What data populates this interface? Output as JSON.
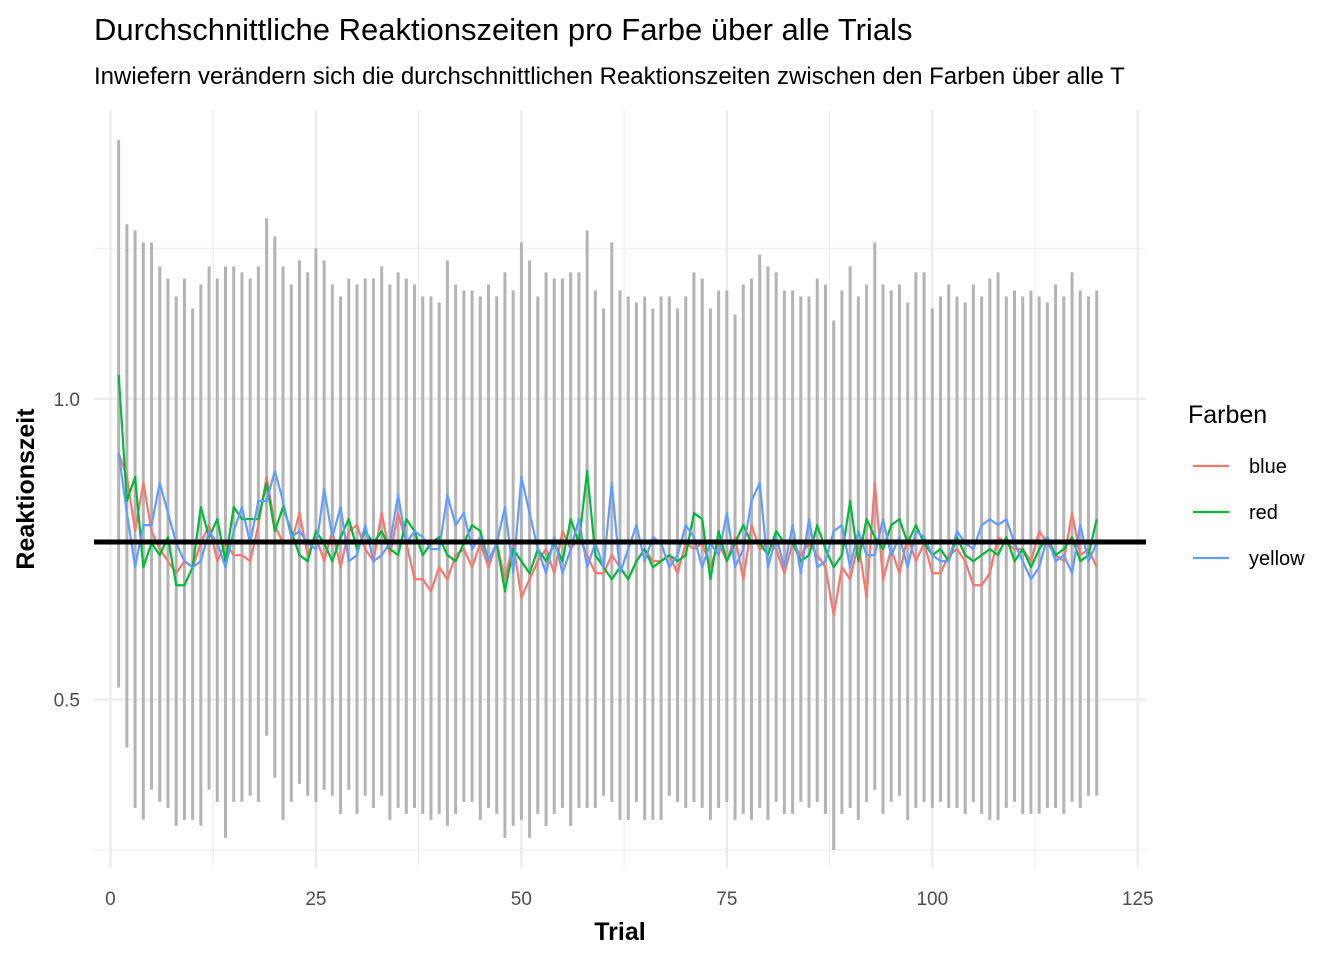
{
  "chart_data": {
    "type": "line",
    "title": "Durchschnittliche Reaktionszeiten pro Farbe über alle Trials",
    "subtitle": "Inwiefern verändern sich die durchschnittlichen Reaktionszeiten zwischen den Farben über alle T",
    "xlabel": "Trial",
    "ylabel": "Reaktionszeit",
    "xlim": [
      -2,
      126
    ],
    "ylim": [
      0.22,
      1.48
    ],
    "x_ticks": [
      0,
      25,
      50,
      75,
      100,
      125
    ],
    "x_tick_labels": [
      "0",
      "25",
      "50",
      "75",
      "100",
      "125"
    ],
    "y_ticks": [
      0.5,
      1.0
    ],
    "y_tick_labels": [
      "0.5",
      "1.0"
    ],
    "grid": true,
    "mean_line": {
      "value": 0.762,
      "color": "#000000"
    },
    "legend": {
      "title": "Farben",
      "position": "right"
    },
    "range_color": "#b3b3b3",
    "ranges": [
      {
        "x": 1,
        "low": 0.52,
        "high": 1.43
      },
      {
        "x": 2,
        "low": 0.42,
        "high": 1.29
      },
      {
        "x": 3,
        "low": 0.32,
        "high": 1.28
      },
      {
        "x": 4,
        "low": 0.3,
        "high": 1.26
      },
      {
        "x": 5,
        "low": 0.35,
        "high": 1.26
      },
      {
        "x": 6,
        "low": 0.33,
        "high": 1.22
      },
      {
        "x": 7,
        "low": 0.32,
        "high": 1.2
      },
      {
        "x": 8,
        "low": 0.29,
        "high": 1.17
      },
      {
        "x": 9,
        "low": 0.3,
        "high": 1.2
      },
      {
        "x": 10,
        "low": 0.3,
        "high": 1.15
      },
      {
        "x": 11,
        "low": 0.29,
        "high": 1.19
      },
      {
        "x": 12,
        "low": 0.35,
        "high": 1.22
      },
      {
        "x": 13,
        "low": 0.33,
        "high": 1.2
      },
      {
        "x": 14,
        "low": 0.27,
        "high": 1.22
      },
      {
        "x": 15,
        "low": 0.33,
        "high": 1.22
      },
      {
        "x": 16,
        "low": 0.33,
        "high": 1.21
      },
      {
        "x": 17,
        "low": 0.34,
        "high": 1.2
      },
      {
        "x": 18,
        "low": 0.33,
        "high": 1.22
      },
      {
        "x": 19,
        "low": 0.44,
        "high": 1.3
      },
      {
        "x": 20,
        "low": 0.37,
        "high": 1.27
      },
      {
        "x": 21,
        "low": 0.3,
        "high": 1.22
      },
      {
        "x": 22,
        "low": 0.33,
        "high": 1.19
      },
      {
        "x": 23,
        "low": 0.36,
        "high": 1.23
      },
      {
        "x": 24,
        "low": 0.34,
        "high": 1.21
      },
      {
        "x": 25,
        "low": 0.33,
        "high": 1.25
      },
      {
        "x": 26,
        "low": 0.35,
        "high": 1.23
      },
      {
        "x": 27,
        "low": 0.34,
        "high": 1.19
      },
      {
        "x": 28,
        "low": 0.31,
        "high": 1.17
      },
      {
        "x": 29,
        "low": 0.35,
        "high": 1.2
      },
      {
        "x": 30,
        "low": 0.31,
        "high": 1.19
      },
      {
        "x": 31,
        "low": 0.34,
        "high": 1.2
      },
      {
        "x": 32,
        "low": 0.32,
        "high": 1.2
      },
      {
        "x": 33,
        "low": 0.34,
        "high": 1.22
      },
      {
        "x": 34,
        "low": 0.3,
        "high": 1.19
      },
      {
        "x": 35,
        "low": 0.32,
        "high": 1.21
      },
      {
        "x": 36,
        "low": 0.31,
        "high": 1.2
      },
      {
        "x": 37,
        "low": 0.32,
        "high": 1.19
      },
      {
        "x": 38,
        "low": 0.31,
        "high": 1.17
      },
      {
        "x": 39,
        "low": 0.3,
        "high": 1.17
      },
      {
        "x": 40,
        "low": 0.31,
        "high": 1.16
      },
      {
        "x": 41,
        "low": 0.29,
        "high": 1.23
      },
      {
        "x": 42,
        "low": 0.31,
        "high": 1.19
      },
      {
        "x": 43,
        "low": 0.33,
        "high": 1.18
      },
      {
        "x": 44,
        "low": 0.33,
        "high": 1.18
      },
      {
        "x": 45,
        "low": 0.3,
        "high": 1.17
      },
      {
        "x": 46,
        "low": 0.32,
        "high": 1.19
      },
      {
        "x": 47,
        "low": 0.31,
        "high": 1.17
      },
      {
        "x": 48,
        "low": 0.27,
        "high": 1.21
      },
      {
        "x": 49,
        "low": 0.29,
        "high": 1.18
      },
      {
        "x": 50,
        "low": 0.3,
        "high": 1.26
      },
      {
        "x": 51,
        "low": 0.27,
        "high": 1.23
      },
      {
        "x": 52,
        "low": 0.31,
        "high": 1.17
      },
      {
        "x": 53,
        "low": 0.29,
        "high": 1.21
      },
      {
        "x": 54,
        "low": 0.31,
        "high": 1.2
      },
      {
        "x": 55,
        "low": 0.32,
        "high": 1.2
      },
      {
        "x": 56,
        "low": 0.29,
        "high": 1.21
      },
      {
        "x": 57,
        "low": 0.32,
        "high": 1.21
      },
      {
        "x": 58,
        "low": 0.32,
        "high": 1.28
      },
      {
        "x": 59,
        "low": 0.32,
        "high": 1.18
      },
      {
        "x": 60,
        "low": 0.34,
        "high": 1.15
      },
      {
        "x": 61,
        "low": 0.33,
        "high": 1.26
      },
      {
        "x": 62,
        "low": 0.3,
        "high": 1.18
      },
      {
        "x": 63,
        "low": 0.3,
        "high": 1.17
      },
      {
        "x": 64,
        "low": 0.33,
        "high": 1.16
      },
      {
        "x": 65,
        "low": 0.3,
        "high": 1.17
      },
      {
        "x": 66,
        "low": 0.3,
        "high": 1.15
      },
      {
        "x": 67,
        "low": 0.3,
        "high": 1.17
      },
      {
        "x": 68,
        "low": 0.34,
        "high": 1.17
      },
      {
        "x": 69,
        "low": 0.33,
        "high": 1.15
      },
      {
        "x": 70,
        "low": 0.32,
        "high": 1.17
      },
      {
        "x": 71,
        "low": 0.33,
        "high": 1.21
      },
      {
        "x": 72,
        "low": 0.32,
        "high": 1.2
      },
      {
        "x": 73,
        "low": 0.3,
        "high": 1.15
      },
      {
        "x": 74,
        "low": 0.32,
        "high": 1.18
      },
      {
        "x": 75,
        "low": 0.33,
        "high": 1.18
      },
      {
        "x": 76,
        "low": 0.3,
        "high": 1.14
      },
      {
        "x": 77,
        "low": 0.31,
        "high": 1.19
      },
      {
        "x": 78,
        "low": 0.3,
        "high": 1.2
      },
      {
        "x": 79,
        "low": 0.32,
        "high": 1.24
      },
      {
        "x": 80,
        "low": 0.3,
        "high": 1.22
      },
      {
        "x": 81,
        "low": 0.33,
        "high": 1.21
      },
      {
        "x": 82,
        "low": 0.31,
        "high": 1.18
      },
      {
        "x": 83,
        "low": 0.31,
        "high": 1.18
      },
      {
        "x": 84,
        "low": 0.33,
        "high": 1.17
      },
      {
        "x": 85,
        "low": 0.32,
        "high": 1.17
      },
      {
        "x": 86,
        "low": 0.33,
        "high": 1.2
      },
      {
        "x": 87,
        "low": 0.31,
        "high": 1.19
      },
      {
        "x": 88,
        "low": 0.25,
        "high": 1.13
      },
      {
        "x": 89,
        "low": 0.31,
        "high": 1.18
      },
      {
        "x": 90,
        "low": 0.32,
        "high": 1.22
      },
      {
        "x": 91,
        "low": 0.3,
        "high": 1.17
      },
      {
        "x": 92,
        "low": 0.33,
        "high": 1.19
      },
      {
        "x": 93,
        "low": 0.35,
        "high": 1.26
      },
      {
        "x": 94,
        "low": 0.31,
        "high": 1.19
      },
      {
        "x": 95,
        "low": 0.33,
        "high": 1.18
      },
      {
        "x": 96,
        "low": 0.34,
        "high": 1.19
      },
      {
        "x": 97,
        "low": 0.3,
        "high": 1.16
      },
      {
        "x": 98,
        "low": 0.32,
        "high": 1.21
      },
      {
        "x": 99,
        "low": 0.33,
        "high": 1.21
      },
      {
        "x": 100,
        "low": 0.32,
        "high": 1.15
      },
      {
        "x": 101,
        "low": 0.33,
        "high": 1.17
      },
      {
        "x": 102,
        "low": 0.32,
        "high": 1.19
      },
      {
        "x": 103,
        "low": 0.32,
        "high": 1.17
      },
      {
        "x": 104,
        "low": 0.31,
        "high": 1.16
      },
      {
        "x": 105,
        "low": 0.33,
        "high": 1.19
      },
      {
        "x": 106,
        "low": 0.31,
        "high": 1.17
      },
      {
        "x": 107,
        "low": 0.3,
        "high": 1.2
      },
      {
        "x": 108,
        "low": 0.3,
        "high": 1.21
      },
      {
        "x": 109,
        "low": 0.32,
        "high": 1.17
      },
      {
        "x": 110,
        "low": 0.33,
        "high": 1.18
      },
      {
        "x": 111,
        "low": 0.31,
        "high": 1.17
      },
      {
        "x": 112,
        "low": 0.31,
        "high": 1.18
      },
      {
        "x": 113,
        "low": 0.31,
        "high": 1.17
      },
      {
        "x": 114,
        "low": 0.32,
        "high": 1.16
      },
      {
        "x": 115,
        "low": 0.32,
        "high": 1.19
      },
      {
        "x": 116,
        "low": 0.31,
        "high": 1.17
      },
      {
        "x": 117,
        "low": 0.33,
        "high": 1.21
      },
      {
        "x": 118,
        "low": 0.32,
        "high": 1.18
      },
      {
        "x": 119,
        "low": 0.34,
        "high": 1.17
      },
      {
        "x": 120,
        "low": 0.34,
        "high": 1.18
      }
    ],
    "series": [
      {
        "name": "blue",
        "color": "#F8766D",
        "values": [
          0.91,
          0.87,
          0.78,
          0.86,
          0.78,
          0.75,
          0.73,
          0.71,
          0.73,
          0.72,
          0.76,
          0.79,
          0.73,
          0.76,
          0.74,
          0.74,
          0.73,
          0.79,
          0.87,
          0.79,
          0.76,
          0.76,
          0.81,
          0.74,
          0.77,
          0.73,
          0.78,
          0.72,
          0.78,
          0.79,
          0.75,
          0.73,
          0.81,
          0.74,
          0.81,
          0.76,
          0.7,
          0.7,
          0.68,
          0.72,
          0.7,
          0.74,
          0.75,
          0.72,
          0.76,
          0.72,
          0.76,
          0.7,
          0.76,
          0.67,
          0.7,
          0.73,
          0.75,
          0.71,
          0.78,
          0.75,
          0.77,
          0.74,
          0.71,
          0.71,
          0.74,
          0.72,
          0.7,
          0.73,
          0.75,
          0.73,
          0.73,
          0.74,
          0.71,
          0.76,
          0.75,
          0.76,
          0.72,
          0.76,
          0.73,
          0.77,
          0.7,
          0.79,
          0.75,
          0.76,
          0.75,
          0.71,
          0.76,
          0.74,
          0.76,
          0.74,
          0.72,
          0.64,
          0.72,
          0.7,
          0.76,
          0.67,
          0.86,
          0.7,
          0.75,
          0.71,
          0.77,
          0.73,
          0.76,
          0.71,
          0.71,
          0.74,
          0.75,
          0.73,
          0.69,
          0.69,
          0.71,
          0.77,
          0.76,
          0.75,
          0.75,
          0.73,
          0.78,
          0.76,
          0.74,
          0.73,
          0.81,
          0.74,
          0.75,
          0.72
        ]
      },
      {
        "name": "red",
        "color": "#00BA38",
        "values": [
          1.04,
          0.83,
          0.87,
          0.72,
          0.76,
          0.74,
          0.77,
          0.69,
          0.69,
          0.72,
          0.82,
          0.77,
          0.8,
          0.73,
          0.82,
          0.8,
          0.8,
          0.8,
          0.86,
          0.78,
          0.82,
          0.78,
          0.74,
          0.73,
          0.78,
          0.76,
          0.73,
          0.77,
          0.8,
          0.75,
          0.78,
          0.76,
          0.78,
          0.75,
          0.74,
          0.8,
          0.78,
          0.74,
          0.76,
          0.77,
          0.74,
          0.73,
          0.76,
          0.79,
          0.78,
          0.73,
          0.76,
          0.68,
          0.75,
          0.73,
          0.71,
          0.75,
          0.73,
          0.76,
          0.73,
          0.8,
          0.76,
          0.88,
          0.74,
          0.72,
          0.7,
          0.72,
          0.7,
          0.73,
          0.75,
          0.72,
          0.73,
          0.74,
          0.73,
          0.74,
          0.81,
          0.8,
          0.7,
          0.78,
          0.73,
          0.76,
          0.79,
          0.76,
          0.76,
          0.74,
          0.78,
          0.76,
          0.76,
          0.73,
          0.74,
          0.79,
          0.75,
          0.72,
          0.74,
          0.83,
          0.73,
          0.8,
          0.77,
          0.75,
          0.79,
          0.8,
          0.76,
          0.79,
          0.76,
          0.74,
          0.75,
          0.73,
          0.77,
          0.74,
          0.73,
          0.74,
          0.75,
          0.74,
          0.77,
          0.73,
          0.75,
          0.72,
          0.75,
          0.77,
          0.74,
          0.75,
          0.77,
          0.73,
          0.74,
          0.8
        ]
      },
      {
        "name": "yellow",
        "color": "#619CFF",
        "values": [
          0.91,
          0.81,
          0.72,
          0.79,
          0.79,
          0.86,
          0.81,
          0.76,
          0.73,
          0.72,
          0.73,
          0.78,
          0.76,
          0.72,
          0.78,
          0.82,
          0.76,
          0.83,
          0.83,
          0.88,
          0.83,
          0.77,
          0.78,
          0.76,
          0.75,
          0.85,
          0.77,
          0.82,
          0.73,
          0.74,
          0.79,
          0.73,
          0.74,
          0.76,
          0.84,
          0.76,
          0.78,
          0.77,
          0.75,
          0.75,
          0.84,
          0.79,
          0.81,
          0.75,
          0.77,
          0.73,
          0.76,
          0.82,
          0.71,
          0.87,
          0.81,
          0.75,
          0.71,
          0.77,
          0.71,
          0.75,
          0.8,
          0.72,
          0.76,
          0.72,
          0.86,
          0.71,
          0.75,
          0.79,
          0.73,
          0.77,
          0.76,
          0.72,
          0.74,
          0.79,
          0.77,
          0.72,
          0.76,
          0.74,
          0.81,
          0.72,
          0.75,
          0.83,
          0.86,
          0.72,
          0.77,
          0.72,
          0.79,
          0.71,
          0.8,
          0.72,
          0.73,
          0.78,
          0.79,
          0.72,
          0.78,
          0.74,
          0.74,
          0.8,
          0.74,
          0.77,
          0.72,
          0.78,
          0.77,
          0.74,
          0.73,
          0.73,
          0.78,
          0.76,
          0.75,
          0.79,
          0.8,
          0.79,
          0.8,
          0.76,
          0.73,
          0.7,
          0.72,
          0.77,
          0.73,
          0.74,
          0.71,
          0.79,
          0.73,
          0.76
        ]
      }
    ]
  }
}
